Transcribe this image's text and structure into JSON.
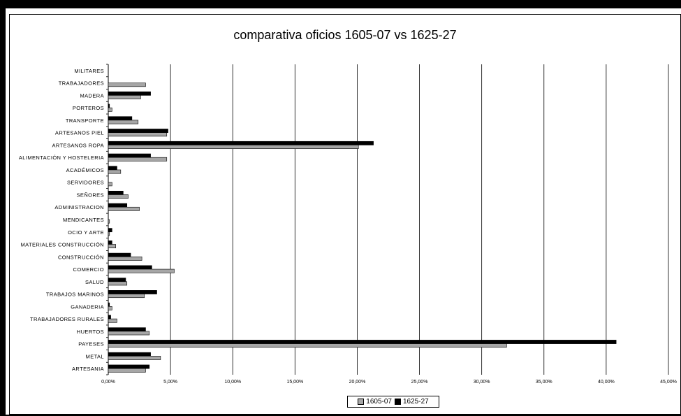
{
  "chart_data": {
    "type": "bar",
    "orientation": "horizontal",
    "title": "comparativa oficios 1605-07 vs 1625-27",
    "xlabel": "",
    "ylabel": "",
    "xlim": [
      0,
      45
    ],
    "x_ticks": [
      "0,00%",
      "5,00%",
      "10,00%",
      "15,00%",
      "20,00%",
      "25,00%",
      "30,00%",
      "35,00%",
      "40,00%",
      "45,00%"
    ],
    "grid": "vertical major gridlines",
    "legend_position": "bottom",
    "categories": [
      "ARTESANIA",
      "METAL",
      "PAYESES",
      "HUERTOS",
      "TRABAJADORES RURALES",
      "GANADERIA",
      "TRABAJOS MARINOS",
      "SALUD",
      "COMERCIO",
      "CONSTRUCCIÓN",
      "MATERIALES CONSTRUCCIÓN",
      "OCIO Y ARTE",
      "MENDICANTES",
      "ADMINISTRACION",
      "SEÑORES",
      "SERVIDORES",
      "ACADÉMICOS",
      "ALIMENTACIÓN Y HOSTELERIA",
      "ARTESANOS ROPA",
      "ARTESANOS PIEL",
      "TRANSPORTE",
      "PORTEROS",
      "MADERA",
      "TRABAJADORES",
      "MILITARES"
    ],
    "series": [
      {
        "name": "1605-07",
        "color": "#a6a6a6",
        "values": [
          3.0,
          4.2,
          32.0,
          3.3,
          0.7,
          0.3,
          2.9,
          1.5,
          5.3,
          2.7,
          0.6,
          0.1,
          0.1,
          2.5,
          1.6,
          0.3,
          1.0,
          4.7,
          20.1,
          4.7,
          2.4,
          0.3,
          2.6,
          3.0,
          0.0
        ]
      },
      {
        "name": "1625-27",
        "color": "#000000",
        "values": [
          3.3,
          3.4,
          40.8,
          3.0,
          0.2,
          0.1,
          3.9,
          1.4,
          3.5,
          1.8,
          0.3,
          0.3,
          0.0,
          1.5,
          1.2,
          0.0,
          0.7,
          3.4,
          21.3,
          4.8,
          1.9,
          0.1,
          3.4,
          0.0,
          0.0
        ]
      }
    ]
  }
}
